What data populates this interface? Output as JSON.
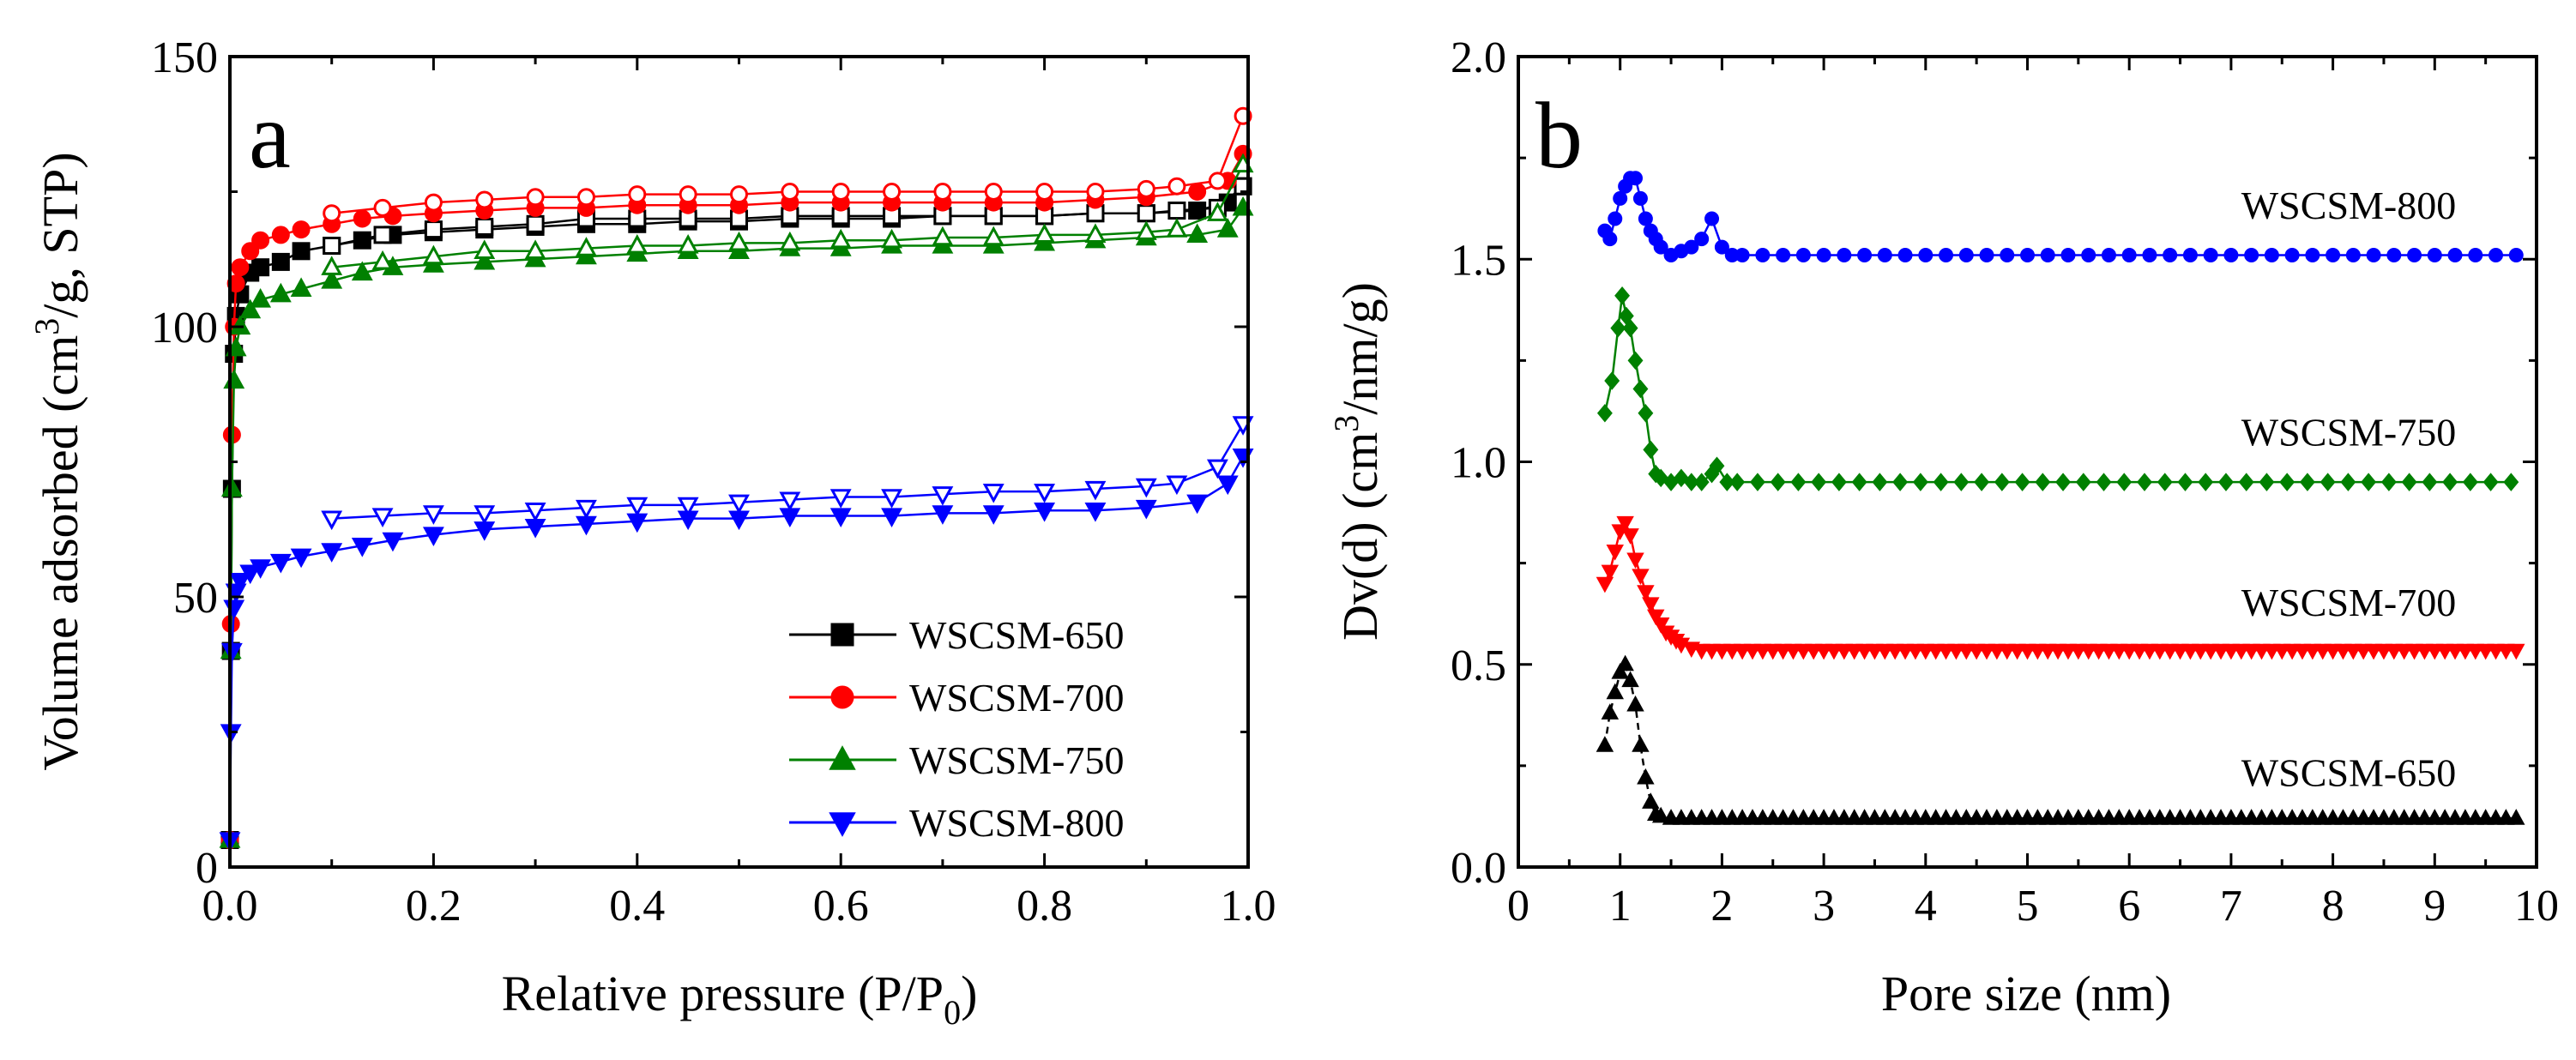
{
  "figure_title": "",
  "chart_data": [
    {
      "type": "scatter",
      "panel_label": "a",
      "title": "",
      "xlabel": {
        "main": "Relative pressure (P/P",
        "sub": "0",
        "tail": ")"
      },
      "ylabel": {
        "pre": "Volume adsorbed (cm",
        "sup": "3",
        "post": "/g, STP)"
      },
      "xlim": [
        0.0,
        1.0
      ],
      "ylim": [
        0,
        150
      ],
      "xticks": [
        0.0,
        0.2,
        0.4,
        0.6,
        0.8,
        1.0
      ],
      "xtick_labels": [
        "0.0",
        "0.2",
        "0.4",
        "0.6",
        "0.8",
        "1.0"
      ],
      "yticks": [
        0,
        50,
        100,
        150
      ],
      "ytick_labels": [
        "0",
        "50",
        "100",
        "150"
      ],
      "grid": false,
      "legend_position": "bottom-right",
      "series": [
        {
          "name": "WSCSM-650",
          "color": "#000000",
          "marker": "square",
          "adsorption": {
            "x": [
              0.0,
              0.001,
              0.002,
              0.004,
              0.006,
              0.01,
              0.02,
              0.03,
              0.05,
              0.07,
              0.1,
              0.13,
              0.16,
              0.2,
              0.25,
              0.3,
              0.35,
              0.4,
              0.45,
              0.5,
              0.55,
              0.6,
              0.65,
              0.7,
              0.75,
              0.8,
              0.85,
              0.9,
              0.95,
              0.98,
              0.995
            ],
            "y": [
              5,
              40,
              70,
              95,
              102,
              106,
              110,
              111,
              112,
              114,
              115,
              116,
              117,
              117.5,
              118,
              118.5,
              119,
              119,
              119.5,
              119.5,
              120,
              120,
              120,
              120.5,
              120.5,
              120.5,
              121,
              121,
              121.5,
              123,
              126
            ]
          },
          "desorption": {
            "x": [
              0.995,
              0.97,
              0.93,
              0.9,
              0.85,
              0.8,
              0.75,
              0.7,
              0.65,
              0.6,
              0.55,
              0.5,
              0.45,
              0.4,
              0.35,
              0.3,
              0.25,
              0.2,
              0.15,
              0.1
            ],
            "y": [
              126,
              122,
              121.5,
              121,
              121,
              120.5,
              120.5,
              120.5,
              120.5,
              120.5,
              120.5,
              120,
              120,
              120,
              120,
              119,
              118.5,
              118,
              117,
              115
            ]
          }
        },
        {
          "name": "WSCSM-700",
          "color": "#ff0000",
          "marker": "circle",
          "adsorption": {
            "x": [
              0.0,
              0.001,
              0.002,
              0.004,
              0.006,
              0.01,
              0.02,
              0.03,
              0.05,
              0.07,
              0.1,
              0.13,
              0.16,
              0.2,
              0.25,
              0.3,
              0.35,
              0.4,
              0.45,
              0.5,
              0.55,
              0.6,
              0.65,
              0.7,
              0.75,
              0.8,
              0.85,
              0.9,
              0.95,
              0.98,
              0.995
            ],
            "y": [
              5,
              45,
              80,
              100,
              108,
              111,
              114,
              116,
              117,
              118,
              119,
              120,
              120.5,
              121,
              121.5,
              122,
              122,
              122.5,
              122.5,
              122.5,
              123,
              123,
              123,
              123,
              123,
              123,
              123.5,
              124,
              125,
              127,
              132
            ]
          },
          "desorption": {
            "x": [
              0.995,
              0.97,
              0.93,
              0.9,
              0.85,
              0.8,
              0.75,
              0.7,
              0.65,
              0.6,
              0.55,
              0.5,
              0.45,
              0.4,
              0.35,
              0.3,
              0.25,
              0.2,
              0.15,
              0.1
            ],
            "y": [
              139,
              127,
              126,
              125.5,
              125,
              125,
              125,
              125,
              125,
              125,
              125,
              124.5,
              124.5,
              124.5,
              124,
              124,
              123.5,
              123,
              122,
              121
            ]
          }
        },
        {
          "name": "WSCSM-750",
          "color": "#008000",
          "marker": "triangle-up",
          "adsorption": {
            "x": [
              0.0,
              0.001,
              0.002,
              0.004,
              0.006,
              0.01,
              0.02,
              0.03,
              0.05,
              0.07,
              0.1,
              0.13,
              0.16,
              0.2,
              0.25,
              0.3,
              0.35,
              0.4,
              0.45,
              0.5,
              0.55,
              0.6,
              0.65,
              0.7,
              0.75,
              0.8,
              0.85,
              0.9,
              0.95,
              0.98,
              0.995
            ],
            "y": [
              5,
              40,
              70,
              90,
              96,
              100,
              103,
              105,
              106,
              107,
              108.5,
              110,
              111,
              111.5,
              112,
              112.5,
              113,
              113.5,
              114,
              114,
              114.5,
              114.5,
              115,
              115,
              115,
              115.5,
              116,
              116.5,
              117,
              118,
              122
            ]
          },
          "desorption": {
            "x": [
              0.995,
              0.97,
              0.93,
              0.9,
              0.85,
              0.8,
              0.75,
              0.7,
              0.65,
              0.6,
              0.55,
              0.5,
              0.45,
              0.4,
              0.35,
              0.3,
              0.25,
              0.2,
              0.15,
              0.1
            ],
            "y": [
              130,
              121,
              118,
              117.5,
              117,
              117,
              116.5,
              116.5,
              116,
              116,
              115.5,
              115.5,
              115,
              115,
              114.5,
              114,
              114,
              113,
              112,
              111
            ]
          }
        },
        {
          "name": "WSCSM-800",
          "color": "#0000ff",
          "marker": "triangle-down",
          "adsorption": {
            "x": [
              0.0,
              0.001,
              0.002,
              0.004,
              0.006,
              0.01,
              0.02,
              0.03,
              0.05,
              0.07,
              0.1,
              0.13,
              0.16,
              0.2,
              0.25,
              0.3,
              0.35,
              0.4,
              0.45,
              0.5,
              0.55,
              0.6,
              0.65,
              0.7,
              0.75,
              0.8,
              0.85,
              0.9,
              0.95,
              0.98,
              0.995
            ],
            "y": [
              5,
              25,
              40,
              48,
              51,
              53,
              54.5,
              55.5,
              56.5,
              57.5,
              58.5,
              59.5,
              60.5,
              61.5,
              62.5,
              63,
              63.5,
              64,
              64.5,
              64.5,
              65,
              65,
              65,
              65.5,
              65.5,
              66,
              66,
              66.5,
              67.5,
              71,
              76
            ]
          },
          "desorption": {
            "x": [
              0.995,
              0.97,
              0.93,
              0.9,
              0.85,
              0.8,
              0.75,
              0.7,
              0.65,
              0.6,
              0.55,
              0.5,
              0.45,
              0.4,
              0.35,
              0.3,
              0.25,
              0.2,
              0.15,
              0.1
            ],
            "y": [
              82,
              74,
              71,
              70.5,
              70,
              69.5,
              69.5,
              69,
              68.5,
              68.5,
              68,
              67.5,
              67,
              67,
              66.5,
              66,
              65.5,
              65.5,
              65,
              64.5
            ]
          }
        }
      ]
    },
    {
      "type": "line",
      "panel_label": "b",
      "title": "",
      "xlabel": {
        "main": "Pore size (nm)"
      },
      "ylabel": {
        "pre": "Dv(d) (cm",
        "sup": "3",
        "post": "/nm/g)"
      },
      "xlim": [
        0,
        10
      ],
      "ylim": [
        0.0,
        2.0
      ],
      "xticks": [
        0,
        1,
        2,
        3,
        4,
        5,
        6,
        7,
        8,
        9,
        10
      ],
      "xtick_labels": [
        "0",
        "1",
        "2",
        "3",
        "4",
        "5",
        "6",
        "7",
        "8",
        "9",
        "10"
      ],
      "yticks": [
        0.0,
        0.5,
        1.0,
        1.5,
        2.0
      ],
      "ytick_labels": [
        "0.0",
        "0.5",
        "1.0",
        "1.5",
        "2.0"
      ],
      "grid": false,
      "series": [
        {
          "name": "WSCSM-800",
          "color": "#0000ff",
          "marker": "circle",
          "dashed": false,
          "x": [
            0.85,
            0.9,
            0.95,
            1.0,
            1.05,
            1.1,
            1.15,
            1.2,
            1.25,
            1.3,
            1.35,
            1.4,
            1.5,
            1.6,
            1.7,
            1.8,
            1.9,
            2.0,
            2.1
          ],
          "y": [
            1.57,
            1.55,
            1.6,
            1.65,
            1.68,
            1.7,
            1.7,
            1.65,
            1.6,
            1.57,
            1.55,
            1.53,
            1.51,
            1.52,
            1.53,
            1.55,
            1.6,
            1.53,
            1.51
          ],
          "flat_from": 2.2,
          "flat_to": 9.8,
          "flat_step": 0.2,
          "flat_value": 1.51
        },
        {
          "name": "WSCSM-750",
          "color": "#008000",
          "marker": "diamond",
          "dashed": false,
          "x": [
            0.85,
            0.92,
            0.98,
            1.02,
            1.06,
            1.1,
            1.15,
            1.2,
            1.25,
            1.3,
            1.35,
            1.4,
            1.5,
            1.6,
            1.7,
            1.8,
            1.9,
            1.95,
            2.05
          ],
          "y": [
            1.12,
            1.2,
            1.33,
            1.41,
            1.36,
            1.33,
            1.25,
            1.18,
            1.12,
            1.03,
            0.97,
            0.96,
            0.95,
            0.96,
            0.95,
            0.95,
            0.97,
            0.99,
            0.95
          ],
          "flat_from": 2.15,
          "flat_to": 9.8,
          "flat_step": 0.2,
          "flat_value": 0.95
        },
        {
          "name": "WSCSM-700",
          "color": "#ff0000",
          "marker": "triangle-down",
          "dashed": false,
          "x": [
            0.85,
            0.9,
            0.95,
            1.0,
            1.05,
            1.1,
            1.15,
            1.2,
            1.25,
            1.3,
            1.35,
            1.4,
            1.45,
            1.5,
            1.55,
            1.6,
            1.7
          ],
          "y": [
            0.7,
            0.73,
            0.78,
            0.83,
            0.85,
            0.82,
            0.76,
            0.72,
            0.68,
            0.65,
            0.62,
            0.6,
            0.58,
            0.57,
            0.56,
            0.55,
            0.54
          ],
          "flat_from": 1.8,
          "flat_to": 9.8,
          "flat_step": 0.1,
          "flat_value": 0.535
        },
        {
          "name": "WSCSM-650",
          "color": "#000000",
          "marker": "triangle-up",
          "dashed": true,
          "x": [
            0.85,
            0.9,
            0.95,
            1.0,
            1.05,
            1.1,
            1.15,
            1.2,
            1.25,
            1.3,
            1.35,
            1.4
          ],
          "y": [
            0.3,
            0.38,
            0.43,
            0.48,
            0.5,
            0.46,
            0.4,
            0.3,
            0.22,
            0.16,
            0.13,
            0.125
          ],
          "flat_from": 1.5,
          "flat_to": 9.8,
          "flat_step": 0.1,
          "flat_value": 0.12
        }
      ],
      "series_labels": [
        {
          "text": "WSCSM-800",
          "x": 7.1,
          "y": 1.6
        },
        {
          "text": "WSCSM-750",
          "x": 7.1,
          "y": 1.04
        },
        {
          "text": "WSCSM-700",
          "x": 7.1,
          "y": 0.62
        },
        {
          "text": "WSCSM-650",
          "x": 7.1,
          "y": 0.2
        }
      ]
    }
  ]
}
